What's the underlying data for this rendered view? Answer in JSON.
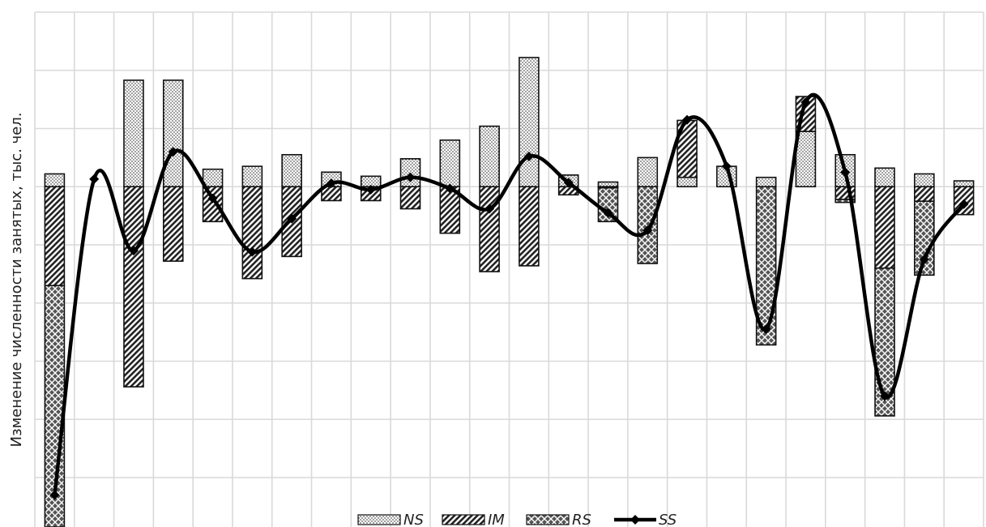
{
  "chart_data": {
    "type": "bar",
    "stacked": true,
    "title": "",
    "xlabel": "",
    "ylabel": "Изменение численности занятых, тыс. чел.",
    "ylim": [
      -5.85,
      3.0
    ],
    "grid": true,
    "legend_position": "bottom-center",
    "categories_count": 24,
    "series": [
      {
        "name": "NS",
        "kind": "bar",
        "pattern": "dots",
        "values": [
          0.22,
          0.0,
          1.83,
          1.83,
          0.3,
          0.35,
          0.55,
          0.25,
          0.18,
          0.48,
          0.8,
          1.04,
          2.22,
          0.2,
          0.08,
          0.5,
          0.16,
          0.35,
          0.16,
          0.95,
          0.55,
          0.32,
          0.22,
          0.1
        ]
      },
      {
        "name": "IM",
        "kind": "bar",
        "pattern": "diagonal",
        "values": [
          -1.7,
          0.0,
          -3.44,
          -1.28,
          -0.6,
          -1.58,
          -1.2,
          -0.24,
          -0.24,
          -0.38,
          -0.8,
          -1.46,
          -1.36,
          -0.14,
          -0.02,
          0.0,
          0.98,
          0.0,
          0.0,
          0.6,
          -0.22,
          -1.4,
          -0.25,
          -0.48
        ]
      },
      {
        "name": "RS",
        "kind": "bar",
        "pattern": "crosshatch",
        "values": [
          -4.15,
          0.0,
          0.0,
          0.0,
          0.0,
          0.0,
          0.0,
          0.0,
          0.0,
          0.0,
          0.0,
          0.0,
          0.0,
          0.0,
          -0.58,
          -1.32,
          0.0,
          0.0,
          -2.72,
          0.0,
          -0.05,
          -2.54,
          -1.27,
          0.0
        ]
      },
      {
        "name": "SS",
        "kind": "line",
        "marker": "diamond",
        "values": [
          -5.3,
          0.13,
          -1.1,
          0.6,
          -0.2,
          -1.12,
          -0.55,
          0.06,
          -0.05,
          0.16,
          -0.03,
          -0.38,
          0.52,
          0.07,
          -0.45,
          -0.75,
          1.15,
          0.35,
          -2.45,
          1.45,
          0.25,
          -3.6,
          -1.25,
          -0.3
        ]
      }
    ]
  }
}
